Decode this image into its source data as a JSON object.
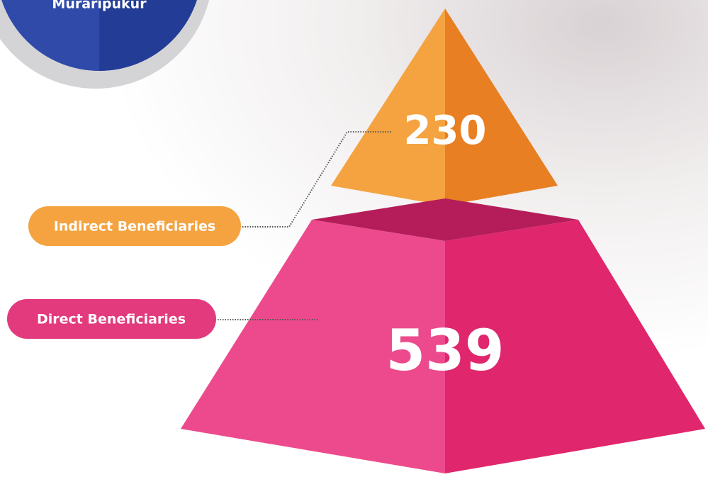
{
  "header": {
    "location": "Muraripukur"
  },
  "tiers": [
    {
      "label": "Indirect Beneficiaries",
      "value": 230
    },
    {
      "label": "Direct Beneficiaries",
      "value": 539
    }
  ]
}
